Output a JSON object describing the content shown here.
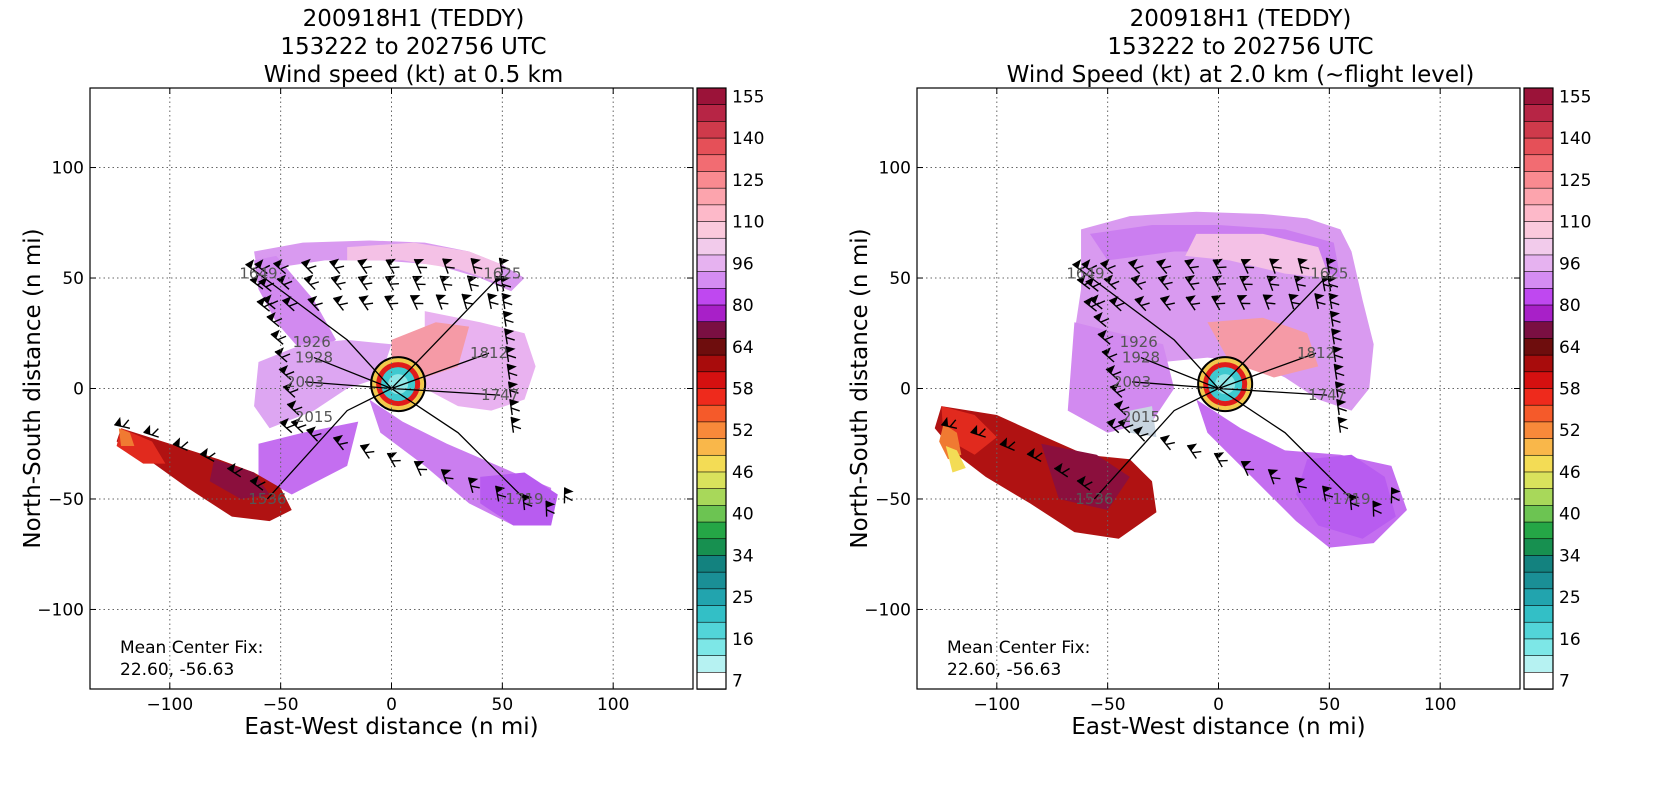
{
  "chart_data": [
    {
      "type": "heatmap",
      "title_lines": [
        "200918H1 (TEDDY)",
        "153222 to 202756 UTC",
        "Wind speed (kt) at 0.5 km"
      ],
      "xlabel": "East-West distance (n mi)",
      "ylabel": "North-South distance (n mi)",
      "xlim": [
        -136,
        136
      ],
      "ylim": [
        -136,
        136
      ],
      "xticks": [
        -100,
        -50,
        0,
        50,
        100
      ],
      "yticks": [
        -100,
        -50,
        0,
        50,
        100
      ],
      "grid": true,
      "annotation": [
        "Mean Center Fix:",
        "22.60, -56.63"
      ],
      "flight_legs": [
        {
          "label": "1625",
          "x": 50,
          "y": 52
        },
        {
          "label": "1649",
          "x": -60,
          "y": 52
        },
        {
          "label": "1926",
          "x": -36,
          "y": 21
        },
        {
          "label": "1928",
          "x": -35,
          "y": 14
        },
        {
          "label": "1812",
          "x": 44,
          "y": 16
        },
        {
          "label": "2003",
          "x": -39,
          "y": 3
        },
        {
          "label": "1747",
          "x": 49,
          "y": -3
        },
        {
          "label": "2015",
          "x": -35,
          "y": -13
        },
        {
          "label": "1536",
          "x": -56,
          "y": -50
        },
        {
          "label": "1719",
          "x": 60,
          "y": -50
        }
      ],
      "colorbar": {
        "tick_labels": [
          "155",
          "140",
          "125",
          "110",
          "96",
          "80",
          "64",
          "58",
          "52",
          "46",
          "40",
          "34",
          "25",
          "16",
          "7"
        ],
        "colors": [
          "#9b1339",
          "#b72545",
          "#cf3a4b",
          "#e55058",
          "#f26c72",
          "#f98a90",
          "#fca4ad",
          "#fdb9c9",
          "#fbc9dc",
          "#f2cbeb",
          "#e6b2f0",
          "#d48cf2",
          "#bf48f0",
          "#a820c8",
          "#7a0f42",
          "#6e0d0d",
          "#a80c0c",
          "#d51010",
          "#ee2a1c",
          "#f55a2a",
          "#f8893a",
          "#f9b74a",
          "#f3dc55",
          "#d9e25c",
          "#a8d85a",
          "#6cc452",
          "#25a646",
          "#179050",
          "#13827f",
          "#1a8f96",
          "#22a4ae",
          "#33bfc6",
          "#52d4d8",
          "#7de7e7",
          "#b6f2f2",
          "#ffffff"
        ]
      }
    },
    {
      "type": "heatmap",
      "title_lines": [
        "200918H1 (TEDDY)",
        "153222 to 202756 UTC",
        "Wind Speed (kt) at 2.0 km (~flight level)"
      ],
      "xlabel": "East-West distance (n mi)",
      "ylabel": "North-South distance (n mi)",
      "xlim": [
        -136,
        136
      ],
      "ylim": [
        -136,
        136
      ],
      "xticks": [
        -100,
        -50,
        0,
        50,
        100
      ],
      "yticks": [
        -100,
        -50,
        0,
        50,
        100
      ],
      "grid": true,
      "annotation": [
        "Mean Center Fix:",
        "22.60, -56.63"
      ],
      "flight_legs": [
        {
          "label": "1625",
          "x": 50,
          "y": 52
        },
        {
          "label": "1649",
          "x": -60,
          "y": 52
        },
        {
          "label": "1926",
          "x": -36,
          "y": 21
        },
        {
          "label": "1928",
          "x": -35,
          "y": 14
        },
        {
          "label": "1812",
          "x": 44,
          "y": 16
        },
        {
          "label": "2003",
          "x": -39,
          "y": 3
        },
        {
          "label": "1747",
          "x": 49,
          "y": -3
        },
        {
          "label": "2015",
          "x": -35,
          "y": -13
        },
        {
          "label": "1536",
          "x": -56,
          "y": -50
        },
        {
          "label": "1719",
          "x": 60,
          "y": -50
        }
      ],
      "colorbar": {
        "tick_labels": [
          "155",
          "140",
          "125",
          "110",
          "96",
          "80",
          "64",
          "58",
          "52",
          "46",
          "40",
          "34",
          "25",
          "16",
          "7"
        ],
        "colors": [
          "#9b1339",
          "#b72545",
          "#cf3a4b",
          "#e55058",
          "#f26c72",
          "#f98a90",
          "#fca4ad",
          "#fdb9c9",
          "#fbc9dc",
          "#f2cbeb",
          "#e6b2f0",
          "#d48cf2",
          "#bf48f0",
          "#a820c8",
          "#7a0f42",
          "#6e0d0d",
          "#a80c0c",
          "#d51010",
          "#ee2a1c",
          "#f55a2a",
          "#f8893a",
          "#f9b74a",
          "#f3dc55",
          "#d9e25c",
          "#a8d85a",
          "#6cc452",
          "#25a646",
          "#179050",
          "#13827f",
          "#1a8f96",
          "#22a4ae",
          "#33bfc6",
          "#52d4d8",
          "#7de7e7",
          "#b6f2f2",
          "#ffffff"
        ]
      }
    }
  ]
}
